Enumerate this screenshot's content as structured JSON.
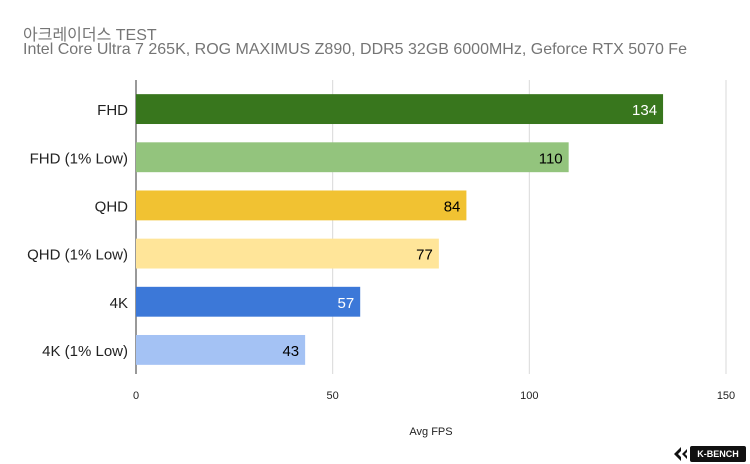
{
  "title": "아크레이더스 TEST",
  "subtitle": "Intel Core Ultra 7 265K, ROG MAXIMUS Z890, DDR5 32GB 6000MHz, Geforce RTX 5070 Fe",
  "logo_text": "K-BENCH",
  "chart_data": {
    "type": "bar",
    "orientation": "horizontal",
    "title": "아크레이더스 TEST",
    "subtitle": "Intel Core Ultra 7 265K, ROG MAXIMUS Z890, DDR5 32GB 6000MHz, Geforce RTX 5070 Fe",
    "xlabel": "Avg FPS",
    "ylabel": "",
    "xlim": [
      0,
      150
    ],
    "xticks": [
      0,
      50,
      100,
      150
    ],
    "grid": true,
    "categories": [
      "FHD",
      "FHD (1% Low)",
      "QHD",
      "QHD (1% Low)",
      "4K",
      "4K (1% Low)"
    ],
    "values": [
      134,
      110,
      84,
      77,
      57,
      43
    ],
    "colors": [
      "#38761d",
      "#93c47d",
      "#f1c232",
      "#ffe599",
      "#3c78d8",
      "#a4c2f4"
    ],
    "label_colors": [
      "#ffffff",
      "#000000",
      "#000000",
      "#000000",
      "#ffffff",
      "#000000"
    ]
  }
}
